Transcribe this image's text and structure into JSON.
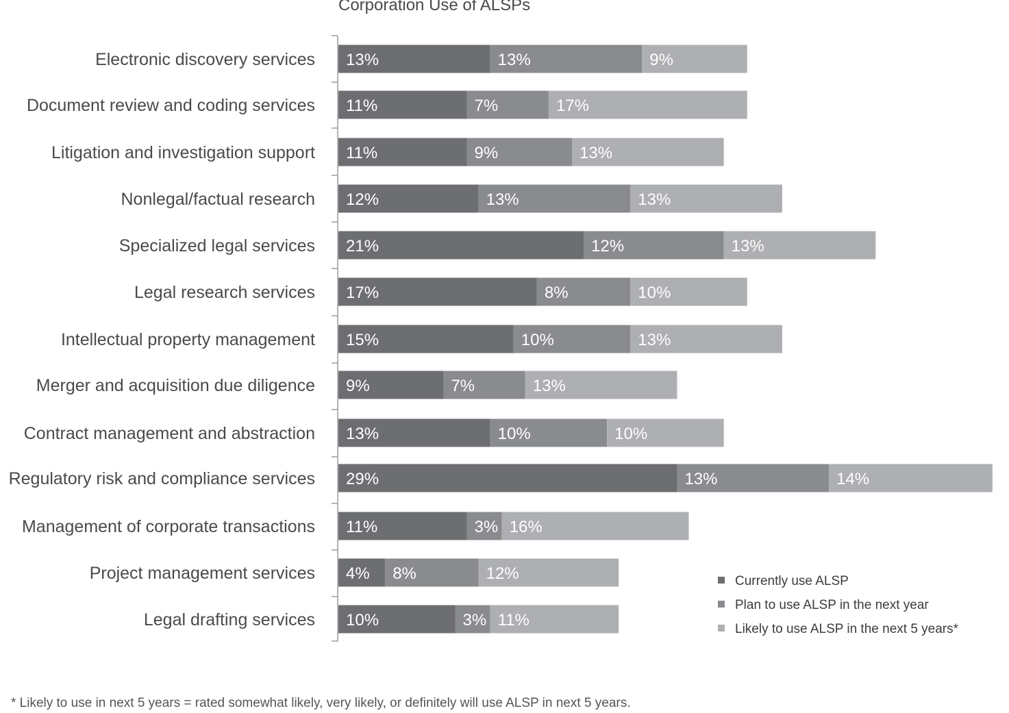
{
  "chart_data": {
    "type": "bar",
    "orientation": "horizontal",
    "stacked": true,
    "title": "Corporation Use of ALSPs",
    "categories": [
      "Electronic discovery services",
      "Document review and coding services",
      "Litigation and investigation support",
      "Nonlegal/factual research",
      "Specialized legal services",
      "Legal research services",
      "Intellectual property management",
      "Merger and acquisition due diligence",
      "Contract management and abstraction",
      "Regulatory risk and compliance services",
      "Management of corporate transactions",
      "Project management services",
      "Legal drafting services"
    ],
    "series": [
      {
        "name": "Currently use ALSP",
        "color": "#6d6e71",
        "values": [
          13,
          11,
          11,
          12,
          21,
          17,
          15,
          9,
          13,
          29,
          11,
          4,
          10
        ]
      },
      {
        "name": "Plan to use ALSP in the next year",
        "color": "#8a8b8e",
        "values": [
          13,
          7,
          9,
          13,
          12,
          8,
          10,
          7,
          10,
          13,
          3,
          8,
          3
        ]
      },
      {
        "name": "Likely to use ALSP in the next 5 years*",
        "color": "#aeafb2",
        "values": [
          9,
          17,
          13,
          13,
          13,
          10,
          13,
          13,
          10,
          14,
          16,
          12,
          11
        ]
      }
    ],
    "value_suffix": "%",
    "legend_position": "bottom-right",
    "grid": false,
    "xlabel": "",
    "ylabel": ""
  },
  "footnote": "* Likely to use in next 5 years = rated somewhat likely, very likely, or definitely will use ALSP in next 5 years."
}
